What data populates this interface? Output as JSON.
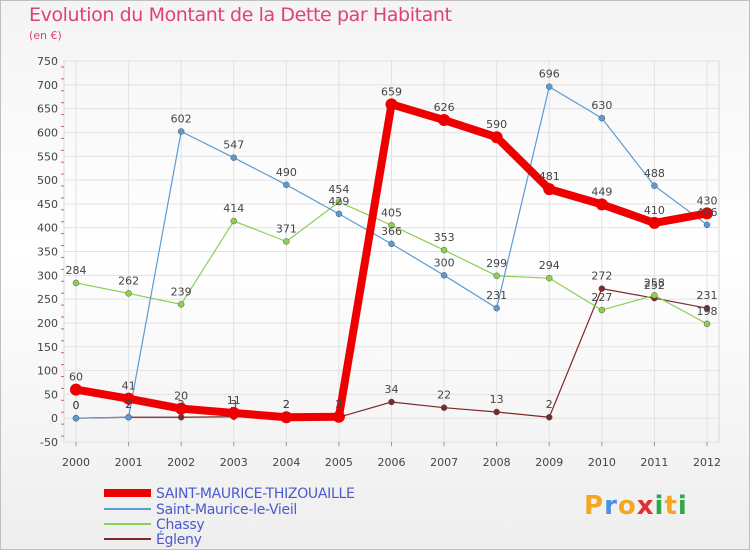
{
  "title": "Evolution du Montant de la Dette par Habitant",
  "subtitle": "(en €)",
  "logo": {
    "letters": [
      "P",
      "r",
      "o",
      "x",
      "i",
      "t",
      "i"
    ],
    "colors": [
      "#f5a623",
      "#4a90e2",
      "#f5a623",
      "#e03030",
      "#2ea84a",
      "#f5a623",
      "#2ea84a"
    ]
  },
  "chart_data": {
    "type": "line",
    "x": [
      "2000",
      "2001",
      "2002",
      "2003",
      "2004",
      "2005",
      "2006",
      "2007",
      "2008",
      "2009",
      "2010",
      "2011",
      "2012"
    ],
    "ylim": [
      -50,
      750
    ],
    "yticks": [
      "-50",
      "0",
      "50",
      "100",
      "150",
      "200",
      "250",
      "300",
      "350",
      "400",
      "450",
      "500",
      "550",
      "600",
      "650",
      "700",
      "750"
    ],
    "grid": true,
    "legend_position": "bottom",
    "series": [
      {
        "name": "SAINT-MAURICE-THIZOUAILLE",
        "color": "#ee0000",
        "values": [
          60,
          41,
          20,
          11,
          2,
          3,
          659,
          626,
          590,
          481,
          449,
          410,
          430
        ],
        "labels": [
          "60",
          "41",
          "20",
          "11",
          "2",
          "3",
          "659",
          "626",
          "590",
          "481",
          "449",
          "410",
          "430"
        ]
      },
      {
        "name": "Saint-Maurice-le-Vieil",
        "color": "#5b9bd5",
        "values": [
          0,
          2,
          602,
          547,
          490,
          429,
          366,
          300,
          231,
          696,
          630,
          488,
          406
        ],
        "labels": [
          "0",
          "2",
          "602",
          "547",
          "490",
          "429",
          "366",
          "300",
          "231",
          "696",
          "630",
          "488",
          "406"
        ]
      },
      {
        "name": "Chassy",
        "color": "#8cd050",
        "values": [
          284,
          262,
          239,
          414,
          371,
          454,
          405,
          353,
          299,
          294,
          227,
          258,
          198
        ],
        "labels": [
          "284",
          "262",
          "239",
          "414",
          "371",
          "454",
          "405",
          "353",
          "299",
          "294",
          "227",
          "258",
          "198"
        ]
      },
      {
        "name": "Égleny",
        "color": "#7a2a2a",
        "values": [
          0,
          2,
          2,
          3,
          2,
          2,
          34,
          22,
          13,
          2,
          272,
          252,
          231
        ],
        "labels": [
          "0",
          "2",
          "2",
          "3",
          "2",
          "2",
          "34",
          "22",
          "13",
          "2",
          "272",
          "252",
          "231"
        ]
      }
    ]
  }
}
